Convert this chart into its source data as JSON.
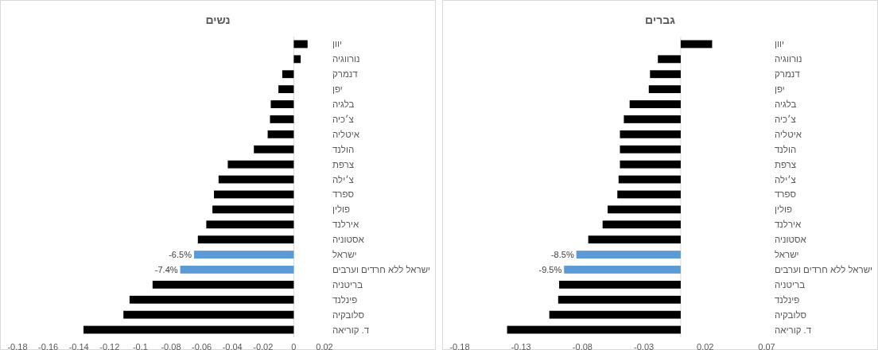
{
  "chart_data": [
    {
      "type": "bar",
      "orientation": "horizontal",
      "title": "נשים",
      "categories": [
        "יוון",
        "נורווגיה",
        "דנמרק",
        "יפן",
        "בלגיה",
        "צ׳כיה",
        "איטליה",
        "הולנד",
        "צרפת",
        "צ׳ילה",
        "ספרד",
        "פולין",
        "אירלנד",
        "אסטוניה",
        "ישראל",
        "ישראל ללא חרדים וערבים",
        "בריטניה",
        "פינלנד",
        "סלובקיה",
        "ד. קוריאה"
      ],
      "values": [
        0.009,
        0.0045,
        -0.0075,
        -0.01,
        -0.015,
        -0.0155,
        -0.017,
        -0.026,
        -0.043,
        -0.049,
        -0.052,
        -0.053,
        -0.057,
        -0.0625,
        -0.065,
        -0.074,
        -0.092,
        -0.107,
        -0.111,
        -0.137
      ],
      "colors": [
        "#000000",
        "#000000",
        "#000000",
        "#000000",
        "#000000",
        "#000000",
        "#000000",
        "#000000",
        "#000000",
        "#000000",
        "#000000",
        "#000000",
        "#000000",
        "#000000",
        "#5b9bd5",
        "#5b9bd5",
        "#000000",
        "#000000",
        "#000000",
        "#000000"
      ],
      "value_labels": [
        null,
        null,
        null,
        null,
        null,
        null,
        null,
        null,
        null,
        null,
        null,
        null,
        null,
        null,
        "-6.5%",
        "-7.4%",
        null,
        null,
        null,
        null
      ],
      "xlim": [
        -0.18,
        0.02
      ],
      "xticks": [
        -0.18,
        -0.16,
        -0.14,
        -0.12,
        -0.1,
        -0.08,
        -0.06,
        -0.04,
        -0.02,
        0,
        0.02
      ]
    },
    {
      "type": "bar",
      "orientation": "horizontal",
      "title": "גברים",
      "categories": [
        "יוון",
        "נורווגיה",
        "דנמרק",
        "יפן",
        "בלגיה",
        "צ׳כיה",
        "איטליה",
        "הולנד",
        "צרפת",
        "צ׳ילה",
        "ספרד",
        "פולין",
        "אירלנד",
        "אסטוניה",
        "ישראל",
        "ישראל ללא חרדים וערבים",
        "בריטניה",
        "פינלנד",
        "סלובקיה",
        "ד. קוריאה"
      ],
      "values": [
        0.0256,
        -0.0186,
        -0.025,
        -0.026,
        -0.0416,
        -0.0463,
        -0.0495,
        -0.0495,
        -0.0495,
        -0.0506,
        -0.0516,
        -0.0595,
        -0.0636,
        -0.0753,
        -0.085,
        -0.095,
        -0.099,
        -0.0998,
        -0.107,
        -0.1414
      ],
      "colors": [
        "#000000",
        "#000000",
        "#000000",
        "#000000",
        "#000000",
        "#000000",
        "#000000",
        "#000000",
        "#000000",
        "#000000",
        "#000000",
        "#000000",
        "#000000",
        "#000000",
        "#5b9bd5",
        "#5b9bd5",
        "#000000",
        "#000000",
        "#000000",
        "#000000"
      ],
      "value_labels": [
        null,
        null,
        null,
        null,
        null,
        null,
        null,
        null,
        null,
        null,
        null,
        null,
        null,
        null,
        "-8.5%",
        "-9.5%",
        null,
        null,
        null,
        null
      ],
      "xlim": [
        -0.18,
        0.07
      ],
      "xticks": [
        -0.18,
        -0.13,
        -0.08,
        -0.03,
        0.02,
        0.07
      ]
    }
  ]
}
